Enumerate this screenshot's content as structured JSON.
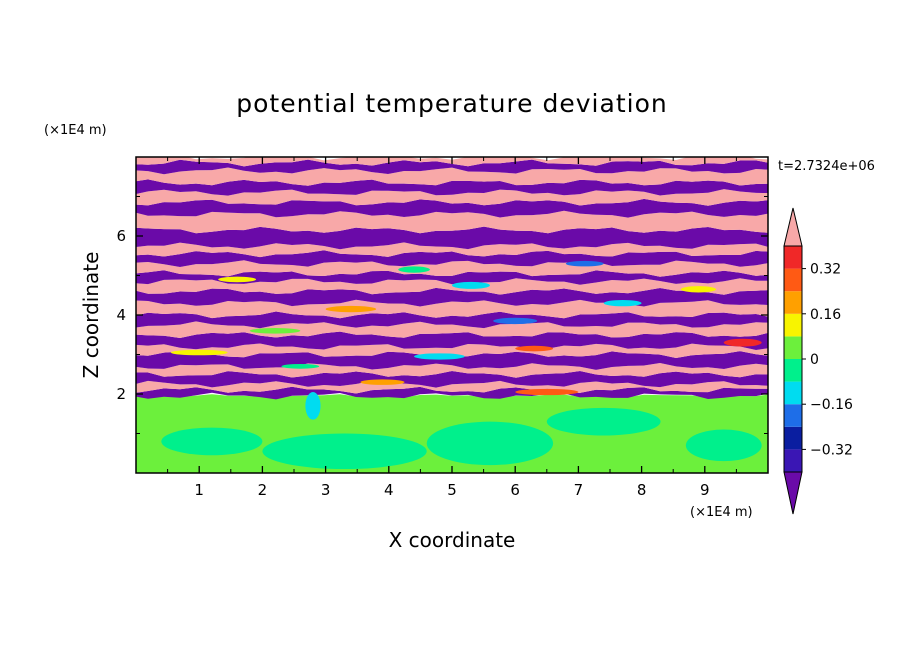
{
  "chart_data": {
    "type": "heatmap",
    "title": "potential temperature deviation",
    "xlabel": "X coordinate",
    "ylabel": "Z coordinate",
    "x_unit": "(×1E4 m)",
    "y_unit": "(×1E4 m)",
    "time_label": "t=2.7324e+06",
    "xlim": [
      0,
      10
    ],
    "ylim": [
      0,
      8
    ],
    "x_ticks": [
      1,
      2,
      3,
      4,
      5,
      6,
      7,
      8,
      9
    ],
    "y_ticks": [
      2,
      4,
      6
    ],
    "x_tick_labels": [
      "1",
      "2",
      "3",
      "4",
      "5",
      "6",
      "7",
      "8",
      "9"
    ],
    "y_tick_labels": [
      "2",
      "4",
      "6"
    ],
    "colorbar": {
      "levels": [
        -0.4,
        -0.32,
        -0.24,
        -0.16,
        -0.08,
        0,
        0.08,
        0.16,
        0.24,
        0.32,
        0.4
      ],
      "tick_values": [
        0.32,
        0.16,
        0,
        -0.16,
        -0.32
      ],
      "tick_labels": [
        "0.32",
        "0.16",
        "0",
        "−0.16",
        "−0.32"
      ],
      "colors": [
        "#6a0aa8",
        "#3a16b4",
        "#0a1ea0",
        "#1e6ee8",
        "#00dcf0",
        "#00f08c",
        "#6cf03c",
        "#f8f400",
        "#ffa000",
        "#ff5a14",
        "#f02828",
        "#f8a8a8"
      ],
      "extend": "both"
    },
    "bands": [
      {
        "z_bottom": 0.0,
        "z_top": 1.95,
        "value": 0.02,
        "color": "#6cf03c"
      },
      {
        "z_bottom": 1.95,
        "z_top": 2.1,
        "value": -0.44,
        "color": "#6a0aa8"
      },
      {
        "z_bottom": 2.1,
        "z_top": 2.25,
        "value": 0.44,
        "color": "#f8a8a8"
      },
      {
        "z_bottom": 2.25,
        "z_top": 2.5,
        "value": -0.44,
        "color": "#6a0aa8"
      },
      {
        "z_bottom": 2.5,
        "z_top": 2.7,
        "value": 0.44,
        "color": "#f8a8a8"
      },
      {
        "z_bottom": 2.7,
        "z_top": 3.0,
        "value": -0.44,
        "color": "#6a0aa8"
      },
      {
        "z_bottom": 3.0,
        "z_top": 3.2,
        "value": 0.44,
        "color": "#f8a8a8"
      },
      {
        "z_bottom": 3.2,
        "z_top": 3.5,
        "value": -0.44,
        "color": "#6a0aa8"
      },
      {
        "z_bottom": 3.5,
        "z_top": 3.75,
        "value": 0.44,
        "color": "#f8a8a8"
      },
      {
        "z_bottom": 3.75,
        "z_top": 4.0,
        "value": -0.44,
        "color": "#6a0aa8"
      },
      {
        "z_bottom": 4.0,
        "z_top": 4.3,
        "value": 0.44,
        "color": "#f8a8a8"
      },
      {
        "z_bottom": 4.3,
        "z_top": 4.6,
        "value": -0.44,
        "color": "#6a0aa8"
      },
      {
        "z_bottom": 4.6,
        "z_top": 4.85,
        "value": 0.44,
        "color": "#f8a8a8"
      },
      {
        "z_bottom": 4.85,
        "z_top": 5.05,
        "value": -0.44,
        "color": "#6a0aa8"
      },
      {
        "z_bottom": 5.05,
        "z_top": 5.3,
        "value": 0.44,
        "color": "#f8a8a8"
      },
      {
        "z_bottom": 5.3,
        "z_top": 5.55,
        "value": -0.44,
        "color": "#6a0aa8"
      },
      {
        "z_bottom": 5.55,
        "z_top": 5.75,
        "value": 0.44,
        "color": "#f8a8a8"
      },
      {
        "z_bottom": 5.75,
        "z_top": 6.15,
        "value": -0.44,
        "color": "#6a0aa8"
      },
      {
        "z_bottom": 6.15,
        "z_top": 6.55,
        "value": 0.44,
        "color": "#f8a8a8"
      },
      {
        "z_bottom": 6.55,
        "z_top": 6.85,
        "value": -0.44,
        "color": "#6a0aa8"
      },
      {
        "z_bottom": 6.85,
        "z_top": 7.1,
        "value": 0.44,
        "color": "#f8a8a8"
      },
      {
        "z_bottom": 7.1,
        "z_top": 7.35,
        "value": -0.44,
        "color": "#6a0aa8"
      },
      {
        "z_bottom": 7.35,
        "z_top": 7.65,
        "value": 0.44,
        "color": "#f8a8a8"
      },
      {
        "z_bottom": 7.65,
        "z_top": 7.85,
        "value": -0.44,
        "color": "#6a0aa8"
      },
      {
        "z_bottom": 7.85,
        "z_top": 8.0,
        "value": 0.44,
        "color": "#f8a8a8"
      }
    ],
    "patches": [
      {
        "x": 1.2,
        "z": 0.8,
        "rx": 0.8,
        "rz": 0.35,
        "value": -0.04,
        "color": "#00f08c"
      },
      {
        "x": 3.3,
        "z": 0.55,
        "rx": 1.3,
        "rz": 0.45,
        "value": -0.04,
        "color": "#00f08c"
      },
      {
        "x": 5.6,
        "z": 0.75,
        "rx": 1.0,
        "rz": 0.55,
        "value": -0.04,
        "color": "#00f08c"
      },
      {
        "x": 7.4,
        "z": 1.3,
        "rx": 0.9,
        "rz": 0.35,
        "value": -0.04,
        "color": "#00f08c"
      },
      {
        "x": 9.3,
        "z": 0.7,
        "rx": 0.6,
        "rz": 0.4,
        "value": -0.04,
        "color": "#00f08c"
      },
      {
        "x": 2.8,
        "z": 1.7,
        "rx": 0.12,
        "rz": 0.35,
        "value": -0.2,
        "color": "#00dcf0"
      },
      {
        "x": 6.5,
        "z": 2.05,
        "rx": 0.5,
        "rz": 0.08,
        "value": 0.28,
        "color": "#ff5a14"
      },
      {
        "x": 3.9,
        "z": 2.3,
        "rx": 0.35,
        "rz": 0.07,
        "value": 0.2,
        "color": "#ffa000"
      },
      {
        "x": 1.0,
        "z": 3.05,
        "rx": 0.45,
        "rz": 0.07,
        "value": 0.12,
        "color": "#f8f400"
      },
      {
        "x": 4.8,
        "z": 2.95,
        "rx": 0.4,
        "rz": 0.08,
        "value": -0.2,
        "color": "#00dcf0"
      },
      {
        "x": 9.6,
        "z": 3.3,
        "rx": 0.3,
        "rz": 0.1,
        "value": 0.36,
        "color": "#f02828"
      },
      {
        "x": 2.2,
        "z": 3.6,
        "rx": 0.4,
        "rz": 0.07,
        "value": 0.04,
        "color": "#6cf03c"
      },
      {
        "x": 6.0,
        "z": 3.85,
        "rx": 0.35,
        "rz": 0.08,
        "value": -0.12,
        "color": "#1e6ee8"
      },
      {
        "x": 3.4,
        "z": 4.15,
        "rx": 0.4,
        "rz": 0.08,
        "value": 0.2,
        "color": "#ffa000"
      },
      {
        "x": 7.7,
        "z": 4.3,
        "rx": 0.3,
        "rz": 0.08,
        "value": -0.2,
        "color": "#00dcf0"
      },
      {
        "x": 5.3,
        "z": 4.75,
        "rx": 0.3,
        "rz": 0.09,
        "value": -0.2,
        "color": "#00dcf0"
      },
      {
        "x": 1.6,
        "z": 4.9,
        "rx": 0.3,
        "rz": 0.07,
        "value": 0.12,
        "color": "#f8f400"
      },
      {
        "x": 4.4,
        "z": 5.15,
        "rx": 0.25,
        "rz": 0.08,
        "value": -0.04,
        "color": "#00f08c"
      },
      {
        "x": 7.1,
        "z": 5.3,
        "rx": 0.3,
        "rz": 0.07,
        "value": -0.12,
        "color": "#1e6ee8"
      },
      {
        "x": 8.9,
        "z": 4.65,
        "rx": 0.28,
        "rz": 0.08,
        "value": 0.12,
        "color": "#f8f400"
      },
      {
        "x": 6.3,
        "z": 3.15,
        "rx": 0.3,
        "rz": 0.07,
        "value": 0.28,
        "color": "#ff5a14"
      },
      {
        "x": 2.6,
        "z": 2.7,
        "rx": 0.3,
        "rz": 0.06,
        "value": -0.04,
        "color": "#00f08c"
      }
    ]
  }
}
